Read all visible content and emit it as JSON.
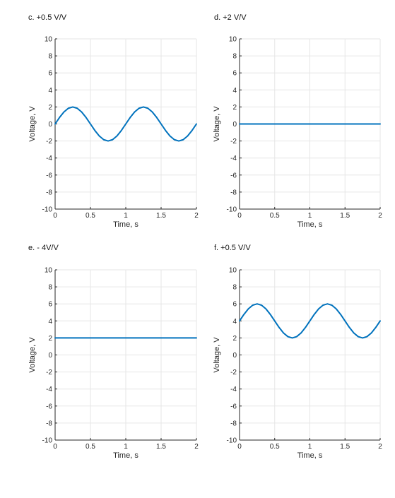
{
  "chart_data": [
    {
      "type": "line",
      "title": "c. +0.5 V/V",
      "xlabel": "Time, s",
      "ylabel": "Voltage, V",
      "xlim": [
        0,
        2
      ],
      "ylim": [
        -10,
        10
      ],
      "xticks": [
        0,
        0.5,
        1,
        1.5,
        2
      ],
      "xtick_labels": [
        "0",
        "0.5",
        "1",
        "1.5",
        "2"
      ],
      "yticks": [
        -10,
        -8,
        -6,
        -4,
        -2,
        0,
        2,
        4,
        6,
        8,
        10
      ],
      "ytick_labels": [
        "-10",
        "-8",
        "-6",
        "-4",
        "-2",
        "0",
        "2",
        "4",
        "6",
        "8",
        "10"
      ],
      "grid": true,
      "series": [
        {
          "color": "#0072BD",
          "x": [
            0,
            0.0625,
            0.125,
            0.1875,
            0.25,
            0.3125,
            0.375,
            0.4375,
            0.5,
            0.5625,
            0.625,
            0.6875,
            0.75,
            0.8125,
            0.875,
            0.9375,
            1,
            1.0625,
            1.125,
            1.1875,
            1.25,
            1.3125,
            1.375,
            1.4375,
            1.5,
            1.5625,
            1.625,
            1.6875,
            1.75,
            1.8125,
            1.875,
            1.9375,
            2
          ],
          "y": [
            0,
            0.765,
            1.414,
            1.848,
            2,
            1.848,
            1.414,
            0.765,
            0,
            -0.765,
            -1.414,
            -1.848,
            -2,
            -1.848,
            -1.414,
            -0.765,
            0,
            0.765,
            1.414,
            1.848,
            2,
            1.848,
            1.414,
            0.765,
            0,
            -0.765,
            -1.414,
            -1.848,
            -2,
            -1.848,
            -1.414,
            -0.765,
            0
          ]
        }
      ]
    },
    {
      "type": "line",
      "title": "d. +2 V/V",
      "xlabel": "Time, s",
      "ylabel": "Voltage, V",
      "xlim": [
        0,
        2
      ],
      "ylim": [
        -10,
        10
      ],
      "xticks": [
        0,
        0.5,
        1,
        1.5,
        2
      ],
      "xtick_labels": [
        "0",
        "0.5",
        "1",
        "1.5",
        "2"
      ],
      "yticks": [
        -10,
        -8,
        -6,
        -4,
        -2,
        0,
        2,
        4,
        6,
        8,
        10
      ],
      "ytick_labels": [
        "-10",
        "-8",
        "-6",
        "-4",
        "-2",
        "0",
        "2",
        "4",
        "6",
        "8",
        "10"
      ],
      "grid": true,
      "series": [
        {
          "color": "#0072BD",
          "x": [
            0,
            2
          ],
          "y": [
            0,
            0
          ]
        }
      ]
    },
    {
      "type": "line",
      "title": "e. - 4V/V",
      "xlabel": "Time, s",
      "ylabel": "Voltage, V",
      "xlim": [
        0,
        2
      ],
      "ylim": [
        -10,
        10
      ],
      "xticks": [
        0,
        0.5,
        1,
        1.5,
        2
      ],
      "xtick_labels": [
        "0",
        "0.5",
        "1",
        "1.5",
        "2"
      ],
      "yticks": [
        -10,
        -8,
        -6,
        -4,
        -2,
        0,
        2,
        4,
        6,
        8,
        10
      ],
      "ytick_labels": [
        "-10",
        "-8",
        "-6",
        "-4",
        "-2",
        "0",
        "2",
        "4",
        "6",
        "8",
        "10"
      ],
      "grid": true,
      "series": [
        {
          "color": "#0072BD",
          "x": [
            0,
            2
          ],
          "y": [
            2,
            2
          ]
        }
      ]
    },
    {
      "type": "line",
      "title": "f. +0.5 V/V",
      "xlabel": "Time, s",
      "ylabel": "Voltage, V",
      "xlim": [
        0,
        2
      ],
      "ylim": [
        -10,
        10
      ],
      "xticks": [
        0,
        0.5,
        1,
        1.5,
        2
      ],
      "xtick_labels": [
        "0",
        "0.5",
        "1",
        "1.5",
        "2"
      ],
      "yticks": [
        -10,
        -8,
        -6,
        -4,
        -2,
        0,
        2,
        4,
        6,
        8,
        10
      ],
      "ytick_labels": [
        "-10",
        "-8",
        "-6",
        "-4",
        "-2",
        "0",
        "2",
        "4",
        "6",
        "8",
        "10"
      ],
      "grid": true,
      "series": [
        {
          "color": "#0072BD",
          "x": [
            0,
            0.0625,
            0.125,
            0.1875,
            0.25,
            0.3125,
            0.375,
            0.4375,
            0.5,
            0.5625,
            0.625,
            0.6875,
            0.75,
            0.8125,
            0.875,
            0.9375,
            1,
            1.0625,
            1.125,
            1.1875,
            1.25,
            1.3125,
            1.375,
            1.4375,
            1.5,
            1.5625,
            1.625,
            1.6875,
            1.75,
            1.8125,
            1.875,
            1.9375,
            2
          ],
          "y": [
            4,
            4.765,
            5.414,
            5.848,
            6,
            5.848,
            5.414,
            4.765,
            4,
            3.235,
            2.586,
            2.152,
            2,
            2.152,
            2.586,
            3.235,
            4,
            4.765,
            5.414,
            5.848,
            6,
            5.848,
            5.414,
            4.765,
            4,
            3.235,
            2.586,
            2.152,
            2,
            2.152,
            2.586,
            3.235,
            4
          ]
        }
      ]
    }
  ]
}
